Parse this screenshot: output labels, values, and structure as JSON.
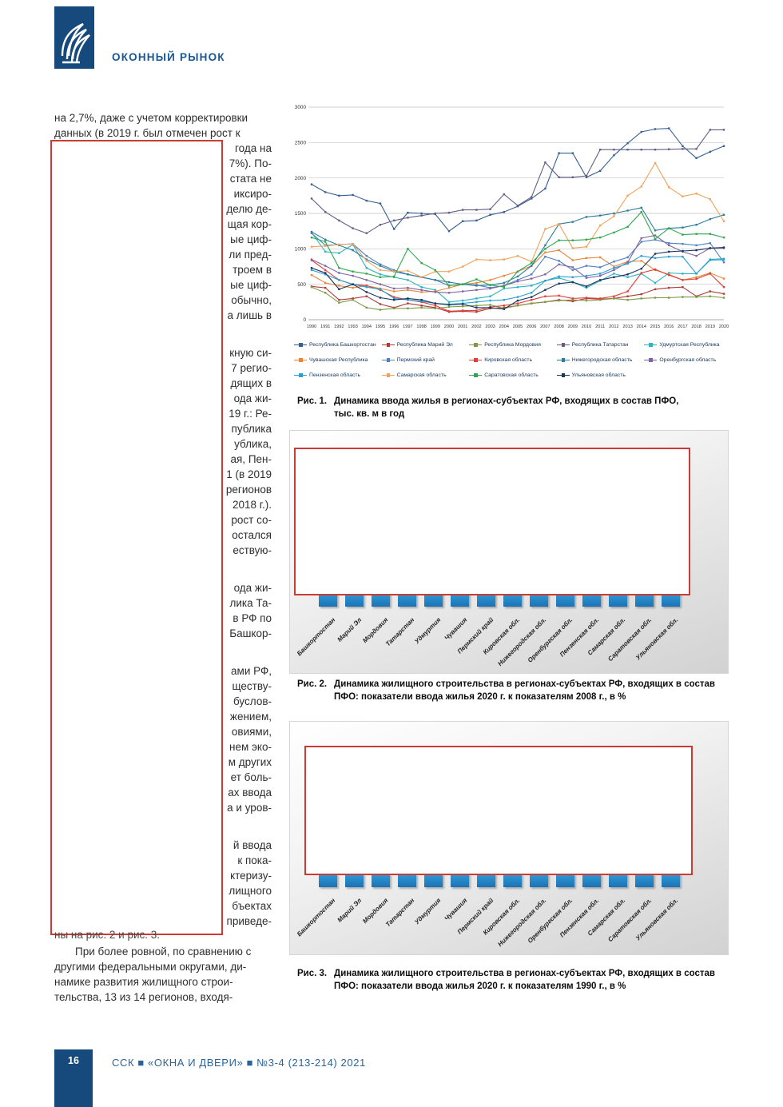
{
  "header": {
    "title": "ОКОННЫЙ РЫНОК",
    "logo_color": "#174A7C",
    "title_color": "#1A5794"
  },
  "footer": {
    "page_number": "16",
    "journal_line": "ССК ■ «ОКНА И ДВЕРИ» ■ №3-4 (213-214) 2021"
  },
  "redaction": {
    "border_color": "#CC3A33",
    "fill": "#FFFFFF"
  },
  "article": {
    "intro_lines": [
      "на 2,7%, даже с учетом корректировки",
      "данных (в 2019 г. был отмечен рост к"
    ],
    "fragment_lines": [
      "года на",
      "7%). По-",
      "стата не",
      "иксиро-",
      "делю де-",
      "щая кор-",
      "ые циф-",
      "ли пред-",
      "троем в",
      "ые циф-",
      "обычно,",
      "а лишь в",
      "",
      "кную си-",
      "7 регио-",
      "дящих в",
      "ода жи-",
      "19 г.: Ре-",
      "публика",
      "ублика,",
      "ая, Пен-",
      "1 (в 2019",
      "регионов",
      "2018 г.).",
      "рост со-",
      "остался",
      "ествую-",
      "",
      "ода жи-",
      "лика Та-",
      "в РФ по",
      "Башкор-",
      "",
      "ами РФ,",
      "ществу-",
      "буслов-",
      "жением,",
      "овиями,",
      "нем эко-",
      "м других",
      "ет боль-",
      "ах ввода",
      "а и уров-",
      "",
      "й ввода",
      "к пока-",
      "ктеризу-",
      "лищного",
      "бъектах",
      "приведе-"
    ],
    "struck_line": "ны на рис. 2 и рис. 3.",
    "closing_lines": [
      "При более ровной, по сравнению с",
      "другими федеральными округами, ди-",
      "намике развития жилищного строи-",
      "тельства, 13 из 14 регионов, входя-"
    ]
  },
  "figures": {
    "fig1": {
      "label": "Рис. 1.",
      "caption_lines": [
        "Динамика ввода жилья в регионах-субъектах РФ, входящих в состав ПФО,",
        "тыс. кв. м в год"
      ]
    },
    "fig2": {
      "label": "Рис. 2.",
      "caption_lines": [
        "Динамика жилищного строительства в регионах-субъектах РФ, входящих в состав",
        "ПФО: показатели ввода жилья 2020 г. к показателям 2008 г., в %"
      ],
      "bar_color": "#1C7CC4",
      "values_hidden": true,
      "categories": [
        "Башкортостан",
        "Марий Эл",
        "Мордовия",
        "Татарстан",
        "Удмуртия",
        "Чувашия",
        "Пермский край",
        "Кировская обл.",
        "Нижегородская обл.",
        "Оренбургская обл.",
        "Пензенская обл.",
        "Самарская обл.",
        "Саратовская обл.",
        "Ульяновская обл."
      ]
    },
    "fig3": {
      "label": "Рис. 3.",
      "caption_lines": [
        "Динамика жилищного строительства в регионах-субъектах РФ, входящих в состав",
        "ПФО: показатели ввода жилья 2020 г. к показателям 1990 г., в %"
      ],
      "bar_color": "#1C7CC4",
      "values_hidden": true,
      "categories": [
        "Башкортостан",
        "Марий Эл",
        "Мордовия",
        "Татарстан",
        "Удмуртия",
        "Чувашия",
        "Пермский край",
        "Кировская обл.",
        "Нижегородская обл.",
        "Оренбургская обл.",
        "Пензенская обл.",
        "Самарская обл.",
        "Саратовская обл.",
        "Ульяновская обл."
      ]
    }
  },
  "chart_data": {
    "type": "line",
    "title": "",
    "xlabel": "",
    "ylabel": "тыс. кв. м в год",
    "ylim": [
      0,
      3000
    ],
    "yticks": [
      0,
      500,
      1000,
      1500,
      2000,
      2500,
      3000
    ],
    "grid": true,
    "legend_position": "bottom",
    "x": [
      1990,
      1991,
      1992,
      1993,
      1994,
      1995,
      1996,
      1997,
      1998,
      1999,
      2000,
      2001,
      2002,
      2003,
      2004,
      2005,
      2006,
      2007,
      2008,
      2009,
      2010,
      2011,
      2012,
      2013,
      2014,
      2015,
      2016,
      2017,
      2018,
      2019,
      2020
    ],
    "series": [
      {
        "name": "Республика Башкортостан",
        "color": "#376091",
        "values": [
          1910,
          1800,
          1750,
          1760,
          1680,
          1640,
          1280,
          1510,
          1500,
          1490,
          1250,
          1390,
          1400,
          1480,
          1520,
          1600,
          1710,
          1850,
          2350,
          2350,
          2010,
          2100,
          2320,
          2490,
          2650,
          2690,
          2700,
          2450,
          2280,
          2370,
          2450
        ]
      },
      {
        "name": "Республика Марий Эл",
        "color": "#AE3B37",
        "values": [
          470,
          450,
          280,
          300,
          330,
          220,
          170,
          230,
          200,
          170,
          110,
          120,
          110,
          160,
          170,
          200,
          230,
          250,
          280,
          260,
          300,
          290,
          300,
          330,
          360,
          430,
          450,
          460,
          330,
          400,
          365
        ]
      },
      {
        "name": "Республика Мордовия",
        "color": "#7E9B44",
        "values": [
          460,
          380,
          240,
          280,
          170,
          140,
          160,
          160,
          170,
          160,
          180,
          190,
          200,
          210,
          160,
          200,
          230,
          250,
          270,
          280,
          270,
          280,
          300,
          280,
          300,
          310,
          310,
          320,
          320,
          330,
          310
        ]
      },
      {
        "name": "Республика Татарстан",
        "color": "#665E87",
        "values": [
          1710,
          1520,
          1400,
          1290,
          1220,
          1340,
          1400,
          1440,
          1470,
          1500,
          1510,
          1550,
          1550,
          1560,
          1770,
          1610,
          1730,
          2220,
          2010,
          2010,
          2030,
          2400,
          2400,
          2400,
          2400,
          2400,
          2405,
          2410,
          2410,
          2680,
          2680
        ]
      },
      {
        "name": "Удмуртская Республика",
        "color": "#2FB3C4",
        "values": [
          1230,
          960,
          940,
          1060,
          730,
          640,
          600,
          560,
          460,
          420,
          250,
          270,
          300,
          330,
          440,
          460,
          480,
          550,
          590,
          530,
          450,
          550,
          650,
          600,
          650,
          520,
          660,
          650,
          650,
          840,
          845
        ]
      },
      {
        "name": "Чувашская Республика",
        "color": "#E8873B",
        "values": [
          630,
          520,
          480,
          450,
          480,
          440,
          400,
          420,
          390,
          400,
          450,
          500,
          520,
          560,
          620,
          680,
          760,
          950,
          980,
          840,
          870,
          880,
          750,
          820,
          830,
          700,
          640,
          560,
          600,
          660,
          580
        ]
      },
      {
        "name": "Пермский край",
        "color": "#4F81BD",
        "values": [
          1220,
          1050,
          1060,
          1070,
          900,
          780,
          700,
          640,
          600,
          560,
          480,
          500,
          490,
          450,
          480,
          560,
          640,
          890,
          830,
          700,
          760,
          740,
          820,
          880,
          1100,
          1130,
          1080,
          1070,
          1050,
          1080,
          810
        ]
      },
      {
        "name": "Кировская область",
        "color": "#E04038",
        "values": [
          840,
          700,
          560,
          500,
          480,
          420,
          320,
          280,
          250,
          200,
          120,
          130,
          130,
          180,
          200,
          230,
          280,
          330,
          340,
          300,
          310,
          300,
          330,
          400,
          660,
          710,
          630,
          560,
          575,
          650,
          460
        ]
      },
      {
        "name": "Нижегородская область",
        "color": "#2D7E9C",
        "values": [
          1240,
          1130,
          1050,
          980,
          850,
          760,
          680,
          640,
          600,
          560,
          530,
          500,
          480,
          490,
          520,
          610,
          760,
          1050,
          1350,
          1380,
          1450,
          1470,
          1500,
          1540,
          1580,
          1260,
          1290,
          1300,
          1340,
          1420,
          1480
        ]
      },
      {
        "name": "Оренбургская область",
        "color": "#8064A2",
        "values": [
          850,
          760,
          660,
          620,
          560,
          500,
          440,
          450,
          420,
          390,
          380,
          400,
          420,
          440,
          480,
          540,
          580,
          640,
          780,
          740,
          590,
          620,
          700,
          810,
          1150,
          1190,
          1050,
          960,
          900,
          1010,
          1010
        ]
      },
      {
        "name": "Пензенская область",
        "color": "#2D9FD0",
        "values": [
          700,
          640,
          560,
          500,
          460,
          430,
          300,
          280,
          260,
          230,
          220,
          230,
          250,
          270,
          280,
          320,
          380,
          550,
          610,
          600,
          620,
          650,
          730,
          790,
          900,
          870,
          890,
          890,
          650,
          850,
          860
        ]
      },
      {
        "name": "Самарская область",
        "color": "#F2A25C",
        "values": [
          1030,
          1040,
          1060,
          1070,
          830,
          700,
          680,
          690,
          600,
          680,
          680,
          750,
          850,
          840,
          850,
          900,
          820,
          1280,
          1350,
          1010,
          1030,
          1330,
          1460,
          1750,
          1880,
          2210,
          1870,
          1740,
          1780,
          1700,
          1390
        ]
      },
      {
        "name": "Саратовская область",
        "color": "#2EA84E",
        "values": [
          1160,
          1100,
          730,
          680,
          650,
          600,
          610,
          1000,
          800,
          700,
          480,
          500,
          570,
          490,
          460,
          680,
          800,
          1000,
          1120,
          1120,
          1130,
          1160,
          1230,
          1310,
          1520,
          1140,
          1290,
          1200,
          1210,
          1210,
          1160
        ]
      },
      {
        "name": "Ульяновская область",
        "color": "#1A365D",
        "values": [
          730,
          660,
          430,
          500,
          390,
          310,
          280,
          300,
          280,
          230,
          210,
          220,
          170,
          170,
          150,
          270,
          320,
          420,
          510,
          530,
          470,
          560,
          600,
          640,
          720,
          930,
          960,
          970,
          980,
          1010,
          1020
        ]
      }
    ]
  }
}
